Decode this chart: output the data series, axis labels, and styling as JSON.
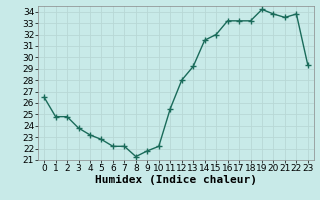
{
  "x": [
    0,
    1,
    2,
    3,
    4,
    5,
    6,
    7,
    8,
    9,
    10,
    11,
    12,
    13,
    14,
    15,
    16,
    17,
    18,
    19,
    20,
    21,
    22,
    23
  ],
  "y": [
    26.5,
    24.8,
    24.8,
    23.8,
    23.2,
    22.8,
    22.2,
    22.2,
    21.3,
    21.8,
    22.2,
    25.5,
    28.0,
    29.2,
    31.5,
    32.0,
    33.2,
    33.2,
    33.2,
    34.2,
    33.8,
    33.5,
    33.8,
    29.3
  ],
  "xlabel": "Humidex (Indice chaleur)",
  "xlim": [
    -0.5,
    23.5
  ],
  "ylim": [
    21,
    34.5
  ],
  "yticks": [
    21,
    22,
    23,
    24,
    25,
    26,
    27,
    28,
    29,
    30,
    31,
    32,
    33,
    34
  ],
  "xticks": [
    0,
    1,
    2,
    3,
    4,
    5,
    6,
    7,
    8,
    9,
    10,
    11,
    12,
    13,
    14,
    15,
    16,
    17,
    18,
    19,
    20,
    21,
    22,
    23
  ],
  "line_color": "#1a6b5a",
  "marker": "+",
  "bg_color": "#c8eae8",
  "grid_color": "#b8d8d5",
  "tick_fontsize": 6.5,
  "xlabel_fontsize": 8,
  "line_width": 1.0,
  "marker_size": 4,
  "marker_edge_width": 1.0
}
